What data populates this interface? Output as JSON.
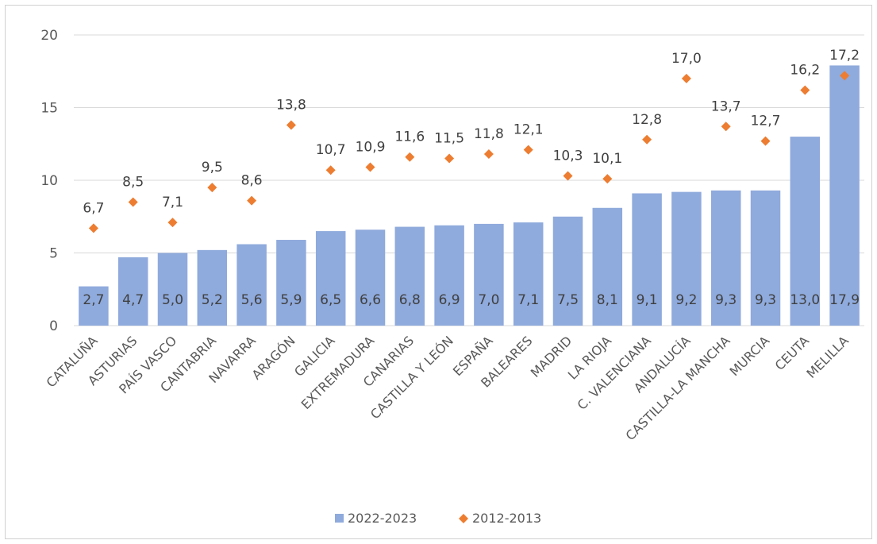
{
  "chart_data": {
    "type": "bar",
    "categories": [
      "CATALUÑA",
      "ASTURIAS",
      "PAÍS VASCO",
      "CANTABRIA",
      "NAVARRA",
      "ARAGÓN",
      "GALICIA",
      "EXTREMADURA",
      "CANARIAS",
      "CASTILLA Y LEÓN",
      "ESPAÑA",
      "BALEARES",
      "MADRID",
      "LA RIOJA",
      "C. VALENCIANA",
      "ANDALUCÍA",
      "CASTILLA-LA MANCHA",
      "MURCIA",
      "CEUTA",
      "MELILLA"
    ],
    "series": [
      {
        "name": "2022-2023",
        "mark": "bar",
        "color": "#8faadc",
        "values": [
          2.7,
          4.7,
          5.0,
          5.2,
          5.6,
          5.9,
          6.5,
          6.6,
          6.8,
          6.9,
          7.0,
          7.1,
          7.5,
          8.1,
          9.1,
          9.2,
          9.3,
          9.3,
          13.0,
          17.9
        ],
        "labels": [
          "2,7",
          "4,7",
          "5,0",
          "5,2",
          "5,6",
          "5,9",
          "6,5",
          "6,6",
          "6,8",
          "6,9",
          "7,0",
          "7,1",
          "7,5",
          "8,1",
          "9,1",
          "9,2",
          "9,3",
          "9,3",
          "13,0",
          "17,9"
        ]
      },
      {
        "name": "2012-2013",
        "mark": "diamond",
        "color": "#ed7d31",
        "values": [
          6.7,
          8.5,
          7.1,
          9.5,
          8.6,
          13.8,
          10.7,
          10.9,
          11.6,
          11.5,
          11.8,
          12.1,
          10.3,
          10.1,
          12.8,
          17.0,
          13.7,
          12.7,
          16.2,
          17.2
        ],
        "labels": [
          "6,7",
          "8,5",
          "7,1",
          "9,5",
          "8,6",
          "13,8",
          "10,7",
          "10,9",
          "11,6",
          "11,5",
          "11,8",
          "12,1",
          "10,3",
          "10,1",
          "12,8",
          "17,0",
          "13,7",
          "12,7",
          "16,2",
          "17,2"
        ]
      }
    ],
    "ylim": [
      0,
      20
    ],
    "yticks": [
      0,
      5,
      10,
      15,
      20
    ],
    "ytick_labels": [
      "0",
      "5",
      "10",
      "15",
      "20"
    ],
    "grid": true,
    "legend_position": "bottom",
    "title": "",
    "xlabel": "",
    "ylabel": ""
  }
}
